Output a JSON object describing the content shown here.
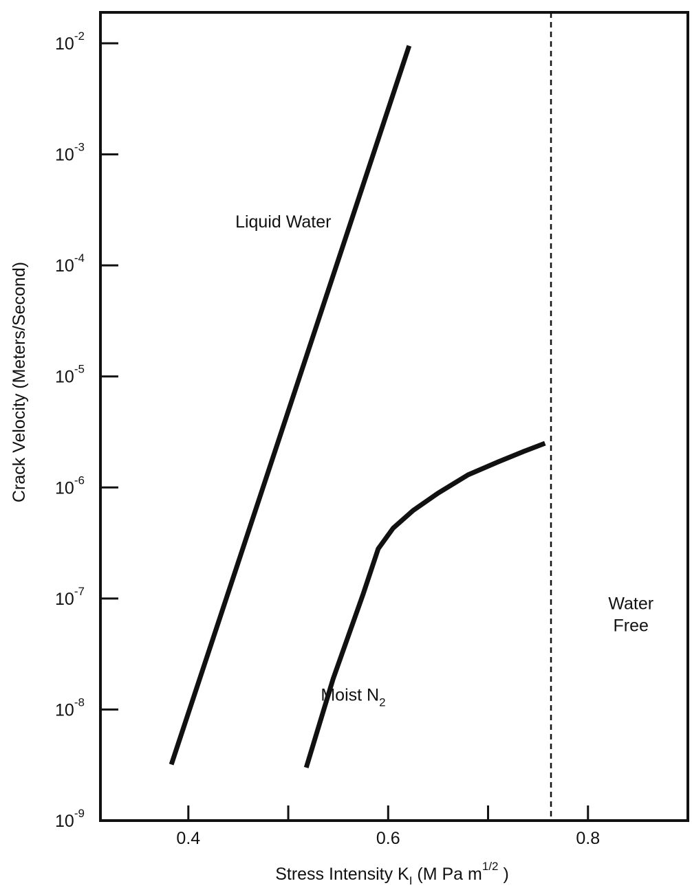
{
  "chart_data": {
    "type": "line",
    "xlabel": {
      "prefix": "Stress Intensity K",
      "sub": "I",
      "mid": " (M Pa m",
      "sup": "1/2",
      "suffix": " )"
    },
    "ylabel": "Crack Velocity (Meters/Second)",
    "y_scale": "log",
    "xlim": [
      0.312,
      0.9
    ],
    "ylim": [
      1e-09,
      0.01
    ],
    "x_ticks_major": [
      0.4,
      0.6,
      0.8
    ],
    "x_tick_labels": [
      "0.4",
      "0.6",
      "0.8"
    ],
    "x_ticks_minor": [
      0.5,
      0.7
    ],
    "y_tick_exponents": [
      -9,
      -8,
      -7,
      -6,
      -5,
      -4,
      -3,
      -2
    ],
    "y_tick_base": "10",
    "y_tick_labels_exp": [
      "-9",
      "-8",
      "-7",
      "-6",
      "-5",
      "-4",
      "-3",
      "-2"
    ],
    "grid": false,
    "series": [
      {
        "name": "Liquid Water",
        "x": [
          0.383,
          0.621
        ],
        "y": [
          3.2e-09,
          0.0095
        ]
      },
      {
        "name": "Moist N",
        "x": [
          0.518,
          0.545,
          0.575,
          0.59,
          0.605,
          0.625,
          0.65,
          0.68,
          0.71,
          0.735,
          0.757
        ],
        "y": [
          3e-09,
          1.9e-08,
          1.1e-07,
          2.8e-07,
          4.3e-07,
          6.2e-07,
          8.9e-07,
          1.3e-06,
          1.7e-06,
          2.1e-06,
          2.5e-06
        ]
      }
    ],
    "vertical_line": {
      "x": 0.763,
      "style": "dashed"
    },
    "annotations": [
      {
        "text": "Liquid Water",
        "x": 0.495,
        "y": 0.00022
      },
      {
        "text": "Moist N",
        "sub": "2",
        "x": 0.565,
        "y": 1.2e-08
      },
      {
        "text": "Water",
        "x": 0.843,
        "y": 8e-08,
        "line2": "Free"
      }
    ]
  }
}
